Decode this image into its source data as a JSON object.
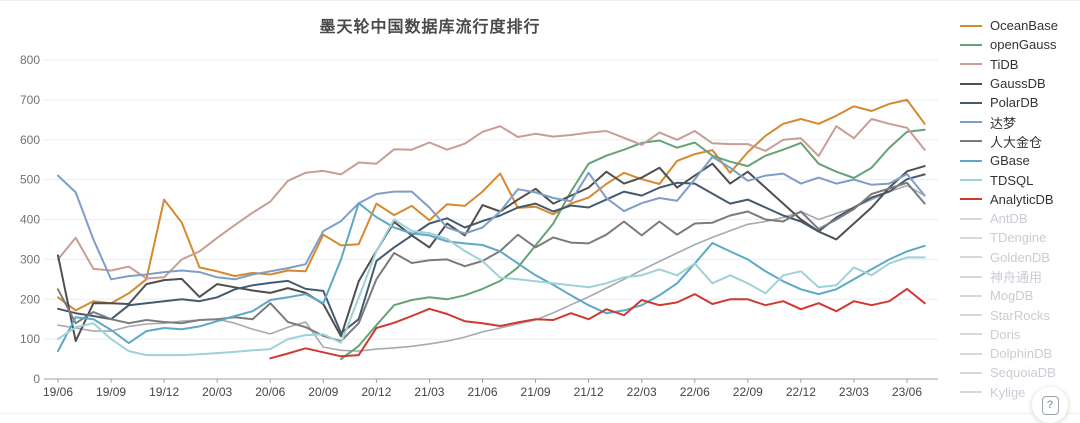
{
  "title": "墨天轮中国数据库流行度排行",
  "help_button": {
    "label": "?"
  },
  "legend": {
    "dimmed_items": [
      "AntDB",
      "TDengine",
      "GoldenDB",
      "神舟通用",
      "MogDB",
      "StarRocks",
      "Doris",
      "DolphinDB",
      "SequoiaDB",
      "Kylige"
    ]
  },
  "colors": {
    "title": "#4a4a4a",
    "grid": "#e8eef7",
    "axis": "#9aa0a6",
    "x_label": "#42454a",
    "y_label": "#6e737c",
    "dimmed_marker": "#d5d8dd",
    "dimmed_text": "#c8ccd3",
    "unlabeled_gray_line": "#a6aab0"
  },
  "chart_data": {
    "type": "line",
    "title": "墨天轮中国数据库流行度排行",
    "xlabel": "",
    "ylabel": "",
    "x_tick_labels": [
      "19/06",
      "19/09",
      "19/12",
      "20/03",
      "20/06",
      "20/09",
      "20/12",
      "21/03",
      "21/06",
      "21/09",
      "21/12",
      "22/03",
      "22/06",
      "22/09",
      "22/12",
      "23/03",
      "23/06"
    ],
    "months_per_tick": 3,
    "points_per_series": 50,
    "y_ticks": [
      0,
      100,
      200,
      300,
      400,
      500,
      600,
      700,
      800
    ],
    "ylim": [
      0,
      860
    ],
    "grid": true,
    "legend_position": "right",
    "series": [
      {
        "name": "OceanBase",
        "color": "#d6892e",
        "values": [
          205,
          172,
          195,
          190,
          215,
          250,
          450,
          392,
          280,
          270,
          258,
          266,
          262,
          272,
          270,
          362,
          335,
          338,
          440,
          411,
          434,
          398,
          438,
          434,
          470,
          515,
          429,
          432,
          413,
          440,
          455,
          489,
          517,
          501,
          489,
          547,
          564,
          574,
          517,
          569,
          610,
          640,
          652,
          640,
          660,
          684,
          672,
          690,
          700,
          640
        ]
      },
      {
        "name": "openGauss",
        "color": "#67a277",
        "values": [
          null,
          null,
          null,
          null,
          null,
          null,
          null,
          null,
          null,
          null,
          null,
          null,
          null,
          null,
          null,
          null,
          50,
          83,
          135,
          185,
          198,
          205,
          200,
          210,
          226,
          246,
          280,
          335,
          390,
          470,
          540,
          560,
          575,
          592,
          598,
          580,
          593,
          560,
          545,
          534,
          560,
          575,
          592,
          540,
          520,
          504,
          530,
          580,
          620,
          625
        ]
      },
      {
        "name": "TiDB",
        "color": "#c89e94",
        "values": [
          300,
          354,
          276,
          272,
          282,
          252,
          255,
          300,
          320,
          354,
          386,
          417,
          445,
          497,
          517,
          522,
          513,
          543,
          540,
          576,
          575,
          593,
          575,
          590,
          620,
          634,
          607,
          615,
          608,
          612,
          618,
          622,
          605,
          587,
          618,
          600,
          622,
          591,
          589,
          589,
          572,
          600,
          604,
          559,
          634,
          604,
          652,
          640,
          630,
          575
        ]
      },
      {
        "name": "GaussDB",
        "color": "#4f4f4f",
        "values": [
          310,
          95,
          190,
          190,
          188,
          238,
          248,
          251,
          206,
          238,
          230,
          222,
          216,
          228,
          216,
          188,
          107,
          245,
          321,
          394,
          360,
          330,
          390,
          360,
          436,
          420,
          450,
          477,
          440,
          460,
          480,
          520,
          490,
          505,
          530,
          480,
          510,
          540,
          490,
          520,
          480,
          440,
          400,
          370,
          350,
          390,
          430,
          480,
          521,
          534
        ]
      },
      {
        "name": "PolarDB",
        "color": "#445a70",
        "values": [
          176,
          165,
          158,
          150,
          185,
          190,
          195,
          200,
          195,
          205,
          225,
          235,
          241,
          246,
          226,
          221,
          115,
          150,
          296,
          330,
          360,
          390,
          403,
          380,
          396,
          410,
          430,
          440,
          420,
          435,
          430,
          450,
          470,
          460,
          480,
          492,
          490,
          465,
          440,
          450,
          430,
          410,
          395,
          370,
          405,
          430,
          455,
          470,
          501,
          513
        ]
      },
      {
        "name": "达梦",
        "color": "#7e9dc7",
        "values": [
          510,
          468,
          350,
          250,
          258,
          262,
          268,
          272,
          268,
          255,
          250,
          262,
          270,
          278,
          288,
          371,
          396,
          441,
          464,
          470,
          470,
          430,
          380,
          365,
          380,
          420,
          476,
          468,
          454,
          446,
          517,
          454,
          421,
          441,
          454,
          447,
          501,
          557,
          530,
          497,
          510,
          515,
          490,
          505,
          490,
          500,
          487,
          490,
          514,
          460
        ]
      },
      {
        "name": "人大金仓",
        "color": "#7b7b7b",
        "values": [
          225,
          140,
          168,
          150,
          140,
          148,
          143,
          140,
          148,
          150,
          155,
          150,
          190,
          143,
          130,
          108,
          95,
          140,
          250,
          316,
          291,
          298,
          300,
          283,
          296,
          321,
          362,
          330,
          355,
          342,
          340,
          362,
          395,
          360,
          395,
          362,
          390,
          392,
          410,
          420,
          400,
          395,
          420,
          376,
          400,
          426,
          464,
          478,
          492,
          440
        ]
      },
      {
        "name": "GBase",
        "color": "#5ea8c6",
        "values": [
          70,
          155,
          150,
          123,
          90,
          120,
          128,
          125,
          132,
          145,
          158,
          170,
          198,
          205,
          213,
          190,
          300,
          441,
          406,
          380,
          365,
          360,
          345,
          340,
          336,
          320,
          290,
          260,
          236,
          210,
          185,
          165,
          172,
          185,
          210,
          240,
          290,
          341,
          320,
          300,
          270,
          245,
          225,
          213,
          225,
          250,
          275,
          300,
          320,
          334
        ]
      },
      {
        "name": "TDSQL",
        "color": "#9ed2d8",
        "values": [
          100,
          130,
          140,
          100,
          70,
          60,
          60,
          60,
          62,
          65,
          68,
          72,
          75,
          100,
          110,
          112,
          91,
          204,
          321,
          400,
          371,
          366,
          351,
          321,
          296,
          254,
          250,
          245,
          240,
          235,
          230,
          240,
          255,
          260,
          275,
          260,
          290,
          240,
          260,
          240,
          215,
          260,
          270,
          230,
          235,
          280,
          260,
          290,
          305,
          305
        ]
      },
      {
        "name": "AnalyticDB",
        "color": "#ce3a30",
        "values": [
          null,
          null,
          null,
          null,
          null,
          null,
          null,
          null,
          null,
          null,
          null,
          null,
          52,
          64,
          77,
          67,
          57,
          60,
          128,
          141,
          158,
          176,
          163,
          145,
          140,
          133,
          142,
          150,
          148,
          165,
          150,
          175,
          160,
          198,
          185,
          192,
          213,
          188,
          200,
          200,
          185,
          195,
          175,
          190,
          170,
          195,
          185,
          195,
          226,
          190
        ]
      }
    ],
    "unlabeled_gray_series": {
      "values": [
        135,
        128,
        120,
        120,
        132,
        138,
        140,
        145,
        148,
        150,
        140,
        125,
        113,
        130,
        143,
        80,
        72,
        70,
        75,
        78,
        82,
        88,
        95,
        105,
        118,
        128,
        138,
        148,
        166,
        186,
        206,
        228,
        250,
        273,
        295,
        316,
        337,
        355,
        372,
        388,
        395,
        405,
        420,
        400,
        415,
        430,
        450,
        470,
        485,
        460
      ]
    }
  }
}
